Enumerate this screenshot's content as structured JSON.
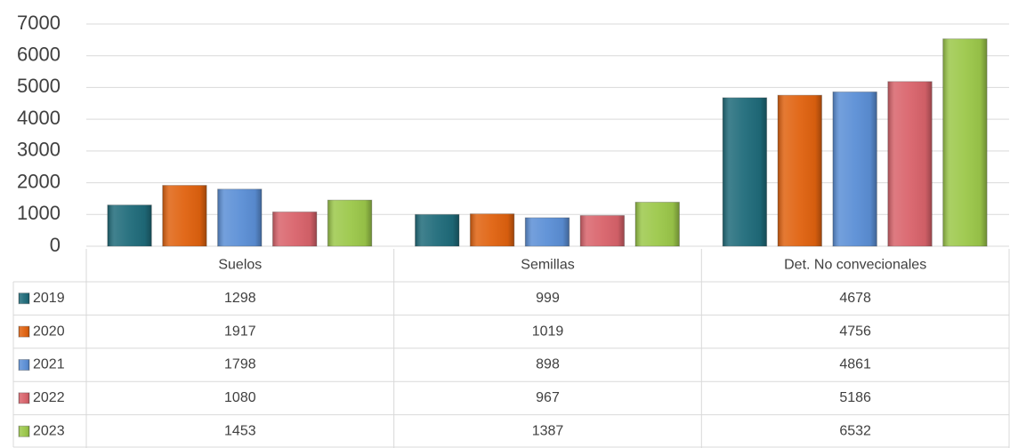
{
  "chart_data": {
    "type": "bar",
    "categories": [
      "Suelos",
      "Semillas",
      "Det. No convecionales"
    ],
    "series": [
      {
        "name": "2019",
        "color": "#1f6b7a",
        "values": [
          1298,
          999,
          4678
        ]
      },
      {
        "name": "2020",
        "color": "#e0620f",
        "values": [
          1917,
          1019,
          4756
        ]
      },
      {
        "name": "2021",
        "color": "#5b8fd6",
        "values": [
          1798,
          898,
          4861
        ]
      },
      {
        "name": "2022",
        "color": "#d9636b",
        "values": [
          1080,
          967,
          5186
        ]
      },
      {
        "name": "2023",
        "color": "#9cc84a",
        "values": [
          1453,
          1387,
          6532
        ]
      }
    ],
    "ylim": [
      0,
      7000
    ],
    "yticks": [
      0,
      1000,
      2000,
      3000,
      4000,
      5000,
      6000,
      7000
    ],
    "grid": true
  }
}
